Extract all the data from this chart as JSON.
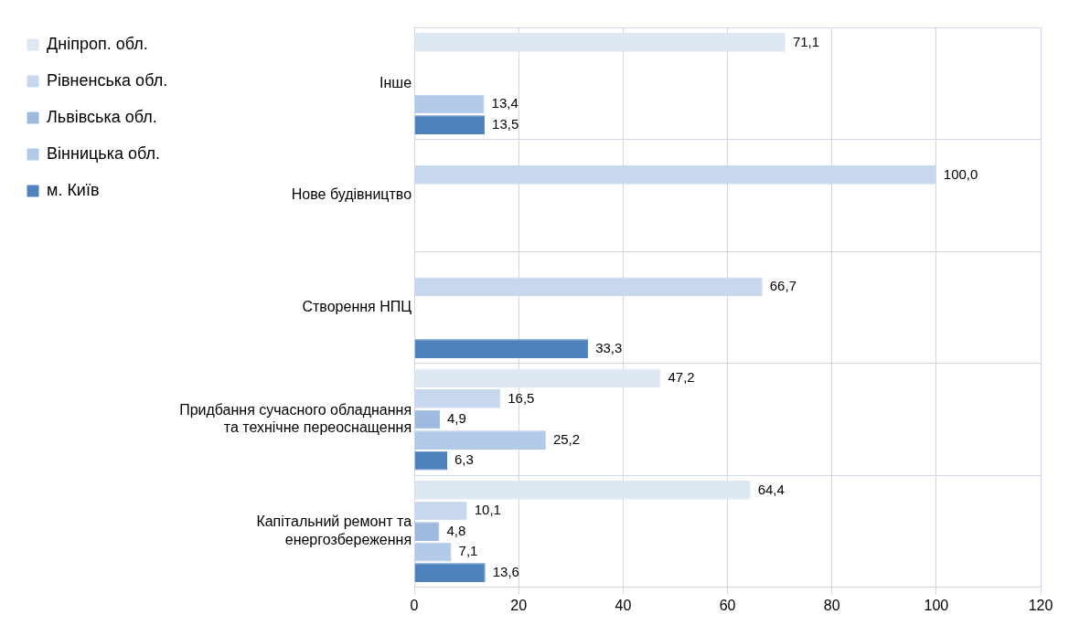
{
  "chart_data": {
    "type": "bar",
    "orientation": "horizontal",
    "categories": [
      "Інше",
      "Нове будівництво",
      "Створення НПЦ",
      "Придбання сучасного обладнання та технічне переоснащення",
      "Капітальний ремонт та енергозбереження"
    ],
    "series": [
      {
        "name": "Дніпроп. обл.",
        "color": "#dde7f4",
        "values": [
          71.1,
          null,
          null,
          47.2,
          64.4
        ],
        "value_labels": [
          "71,1",
          null,
          null,
          "47,2",
          "64,4"
        ]
      },
      {
        "name": "Рівненська обл.",
        "color": "#c6d7ee",
        "values": [
          null,
          100.0,
          66.7,
          16.5,
          10.1
        ],
        "value_labels": [
          null,
          "100,0",
          "66,7",
          "16,5",
          "10,1"
        ]
      },
      {
        "name": "Львівська обл.",
        "color": "#9fbae0",
        "values": [
          null,
          null,
          null,
          4.9,
          4.8
        ],
        "value_labels": [
          null,
          null,
          null,
          "4,9",
          "4,8"
        ]
      },
      {
        "name": "Вінницька обл.",
        "color": "#b3c9e8",
        "values": [
          13.4,
          null,
          null,
          25.2,
          7.1
        ],
        "value_labels": [
          "13,4",
          null,
          null,
          "25,2",
          "7,1"
        ]
      },
      {
        "name": "м. Київ",
        "color": "#4f81bd",
        "values": [
          13.5,
          null,
          33.3,
          6.3,
          13.6
        ],
        "value_labels": [
          "13,5",
          null,
          "33,3",
          "6,3",
          "13,6"
        ]
      }
    ],
    "xlim": [
      0,
      120
    ],
    "xticks": [
      0,
      20,
      40,
      60,
      80,
      100,
      120
    ],
    "grid": true,
    "legend": "left"
  }
}
